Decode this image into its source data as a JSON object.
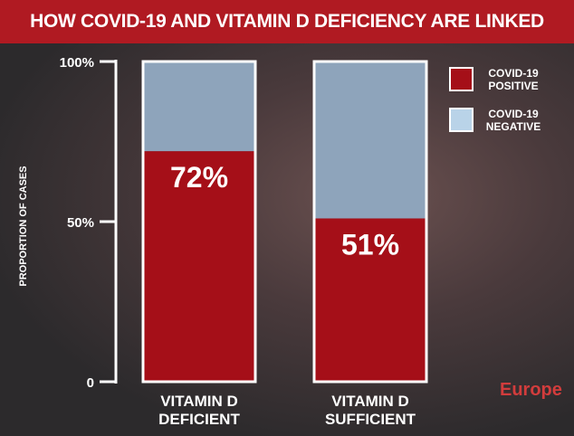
{
  "chart_data": {
    "type": "stacked-bar",
    "title": "HOW COVID-19 AND VITAMIN D DEFICIENCY ARE LINKED",
    "ylabel": "PROPORTION OF CASES",
    "categories": [
      "VITAMIN D DEFICIENT",
      "VITAMIN D SUFFICIENT"
    ],
    "series": [
      {
        "name": "COVID-19 POSITIVE",
        "color": "#a50f18",
        "values": [
          72,
          51
        ],
        "value_labels": [
          "72%",
          "51%"
        ]
      },
      {
        "name": "COVID-19 NEGATIVE",
        "color": "#8ea4bb",
        "values": [
          28,
          49
        ]
      }
    ],
    "ylim": [
      0,
      100
    ],
    "yticks": [
      0,
      {
        "value": 50,
        "label": "50%"
      },
      {
        "value": 100,
        "label": "100%"
      }
    ],
    "watermark": "Europe"
  }
}
